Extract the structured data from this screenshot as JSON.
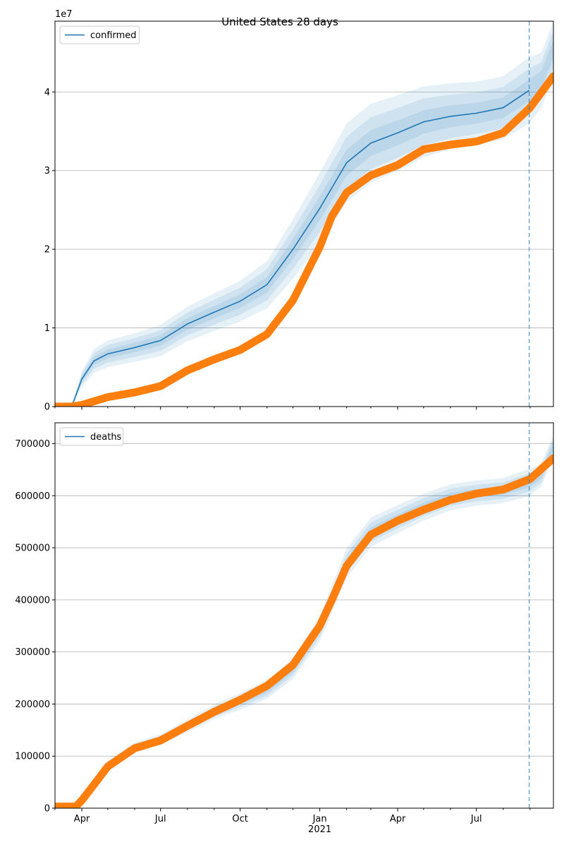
{
  "figure": {
    "title": "United States 28 days"
  },
  "chart_data": [
    {
      "type": "line",
      "title": "United States 28 days",
      "legend": {
        "placement": "top-left",
        "entries": [
          "confirmed"
        ]
      },
      "y_offset_label": "1e7",
      "ylim": [
        0,
        4.9
      ],
      "y_ticks": [
        0,
        1,
        2,
        3,
        4
      ],
      "y_tick_labels": [
        "0",
        "1",
        "2",
        "3",
        "4"
      ],
      "x_tick_labels": [
        "Apr",
        "Jul",
        "Oct",
        "Jan",
        "Apr",
        "Jul"
      ],
      "x_secondary_label": "2021",
      "grid": "horizontal",
      "colors": {
        "model": "#1f77b4",
        "observed": "#ff7f0e",
        "band": "#1f77b4"
      },
      "forecast_start": "2021-08-31",
      "x_range": [
        "2020-03-01",
        "2021-09-28"
      ],
      "series": [
        {
          "name": "confirmed",
          "role": "model",
          "x": [
            "2020-03-01",
            "2020-03-15",
            "2020-03-22",
            "2020-04-01",
            "2020-04-15",
            "2020-05-01",
            "2020-06-01",
            "2020-07-01",
            "2020-08-01",
            "2020-09-01",
            "2020-10-01",
            "2020-11-01",
            "2020-12-01",
            "2021-01-01",
            "2021-02-01",
            "2021-03-01",
            "2021-04-01",
            "2021-05-01",
            "2021-06-01",
            "2021-07-01",
            "2021-08-01",
            "2021-08-31"
          ],
          "y": [
            0.0,
            0.0,
            0.05,
            0.35,
            0.58,
            0.67,
            0.75,
            0.84,
            1.05,
            1.2,
            1.34,
            1.55,
            2.0,
            2.52,
            3.1,
            3.35,
            3.48,
            3.62,
            3.69,
            3.73,
            3.8,
            4.02
          ],
          "band_width": [
            0,
            0,
            0.02,
            0.1,
            0.15,
            0.17,
            0.18,
            0.2,
            0.22,
            0.24,
            0.26,
            0.3,
            0.38,
            0.45,
            0.5,
            0.5,
            0.48,
            0.45,
            0.42,
            0.4,
            0.4,
            0.42
          ]
        },
        {
          "name": "forecast",
          "role": "model",
          "x": [
            "2021-08-31",
            "2021-09-14",
            "2021-09-28"
          ],
          "y": [
            4.02,
            4.15,
            4.55
          ],
          "band_width": [
            0.42,
            0.35,
            0.35
          ]
        },
        {
          "name": "observed",
          "role": "observed",
          "x": [
            "2020-03-01",
            "2020-03-20",
            "2020-04-01",
            "2020-05-01",
            "2020-06-01",
            "2020-07-01",
            "2020-08-01",
            "2020-09-01",
            "2020-10-01",
            "2020-11-01",
            "2020-12-01",
            "2021-01-01",
            "2021-01-15",
            "2021-02-01",
            "2021-03-01",
            "2021-04-01",
            "2021-05-01",
            "2021-06-01",
            "2021-07-01",
            "2021-08-01",
            "2021-09-01",
            "2021-09-28"
          ],
          "y": [
            0.0,
            0.0,
            0.02,
            0.12,
            0.18,
            0.26,
            0.46,
            0.6,
            0.72,
            0.92,
            1.35,
            2.03,
            2.42,
            2.72,
            2.94,
            3.07,
            3.27,
            3.33,
            3.37,
            3.48,
            3.8,
            4.2
          ]
        }
      ]
    },
    {
      "type": "line",
      "legend": {
        "placement": "top-left",
        "entries": [
          "deaths"
        ]
      },
      "ylim": [
        0,
        740000
      ],
      "y_ticks": [
        0,
        100000,
        200000,
        300000,
        400000,
        500000,
        600000,
        700000
      ],
      "y_tick_labels": [
        "0",
        "100000",
        "200000",
        "300000",
        "400000",
        "500000",
        "600000",
        "700000"
      ],
      "x_tick_labels": [
        "Apr",
        "Jul",
        "Oct",
        "Jan",
        "Apr",
        "Jul"
      ],
      "x_secondary_label": "2021",
      "grid": "horizontal",
      "colors": {
        "model": "#1f77b4",
        "observed": "#ff7f0e",
        "band": "#1f77b4"
      },
      "forecast_start": "2021-08-31",
      "x_range": [
        "2020-03-01",
        "2021-09-28"
      ],
      "series": [
        {
          "name": "deaths",
          "role": "model",
          "x": [
            "2020-03-01",
            "2020-03-25",
            "2020-04-01",
            "2020-04-15",
            "2020-05-01",
            "2020-06-01",
            "2020-07-01",
            "2020-08-01",
            "2020-09-01",
            "2020-10-01",
            "2020-11-01",
            "2020-12-01",
            "2021-01-01",
            "2021-02-01",
            "2021-03-01",
            "2021-04-01",
            "2021-05-01",
            "2021-06-01",
            "2021-07-01",
            "2021-08-01",
            "2021-08-31"
          ],
          "y": [
            0,
            3000,
            15000,
            50000,
            85000,
            118000,
            132000,
            158000,
            185000,
            205000,
            228000,
            268000,
            345000,
            470000,
            530000,
            555000,
            578000,
            597000,
            605000,
            610000,
            625000
          ],
          "band_width": [
            0,
            1000,
            2000,
            4000,
            6000,
            8000,
            10000,
            12000,
            14000,
            16000,
            18000,
            20000,
            24000,
            28000,
            28000,
            27000,
            26000,
            25000,
            24000,
            24000,
            26000
          ]
        },
        {
          "name": "forecast",
          "role": "model",
          "x": [
            "2021-08-31",
            "2021-09-14",
            "2021-09-28"
          ],
          "y": [
            625000,
            640000,
            695000
          ],
          "band_width": [
            26000,
            22000,
            22000
          ]
        },
        {
          "name": "observed",
          "role": "observed",
          "x": [
            "2020-03-01",
            "2020-03-25",
            "2020-04-01",
            "2020-04-15",
            "2020-05-01",
            "2020-06-01",
            "2020-07-01",
            "2020-08-01",
            "2020-09-01",
            "2020-10-01",
            "2020-11-01",
            "2020-12-01",
            "2021-01-01",
            "2021-01-15",
            "2021-02-01",
            "2021-03-01",
            "2021-04-01",
            "2021-05-01",
            "2021-06-01",
            "2021-07-01",
            "2021-08-01",
            "2021-09-01",
            "2021-09-28"
          ],
          "y": [
            3000,
            3000,
            15000,
            45000,
            80000,
            115000,
            130000,
            158000,
            185000,
            208000,
            235000,
            275000,
            350000,
            400000,
            465000,
            525000,
            552000,
            573000,
            592000,
            604000,
            612000,
            632000,
            672000
          ]
        }
      ]
    }
  ]
}
